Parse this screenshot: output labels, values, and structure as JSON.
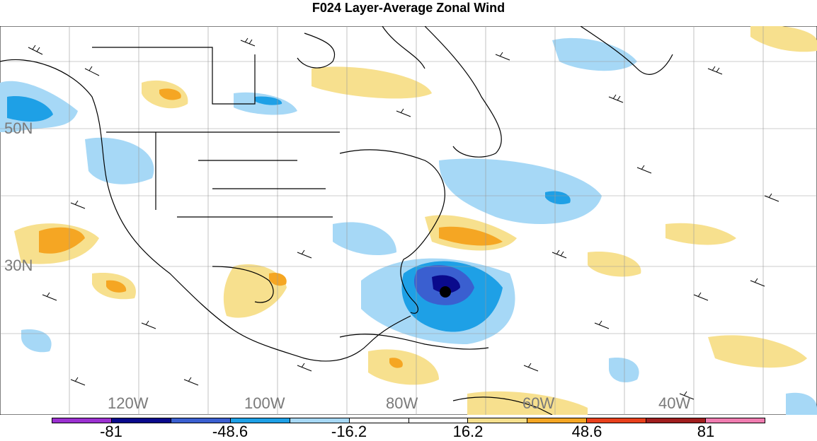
{
  "title": "F024 Layer-Average Zonal Wind",
  "lat_labels": [
    "50N",
    "30N"
  ],
  "lon_labels": [
    "120W",
    "100W",
    "80W",
    "60W",
    "40W"
  ],
  "colorbar": {
    "colors": [
      "#9b30d0",
      "#0a0a8c",
      "#3a5fd0",
      "#1ea0e6",
      "#a6d8f6",
      "#ffffff",
      "#ffffff",
      "#f7e08e",
      "#f5a623",
      "#e8401c",
      "#a01e1e",
      "#f07cb0"
    ],
    "labels": [
      "-81",
      "-48.6",
      "-16.2",
      "16.2",
      "48.6",
      "81"
    ]
  },
  "marker": "black-dot"
}
